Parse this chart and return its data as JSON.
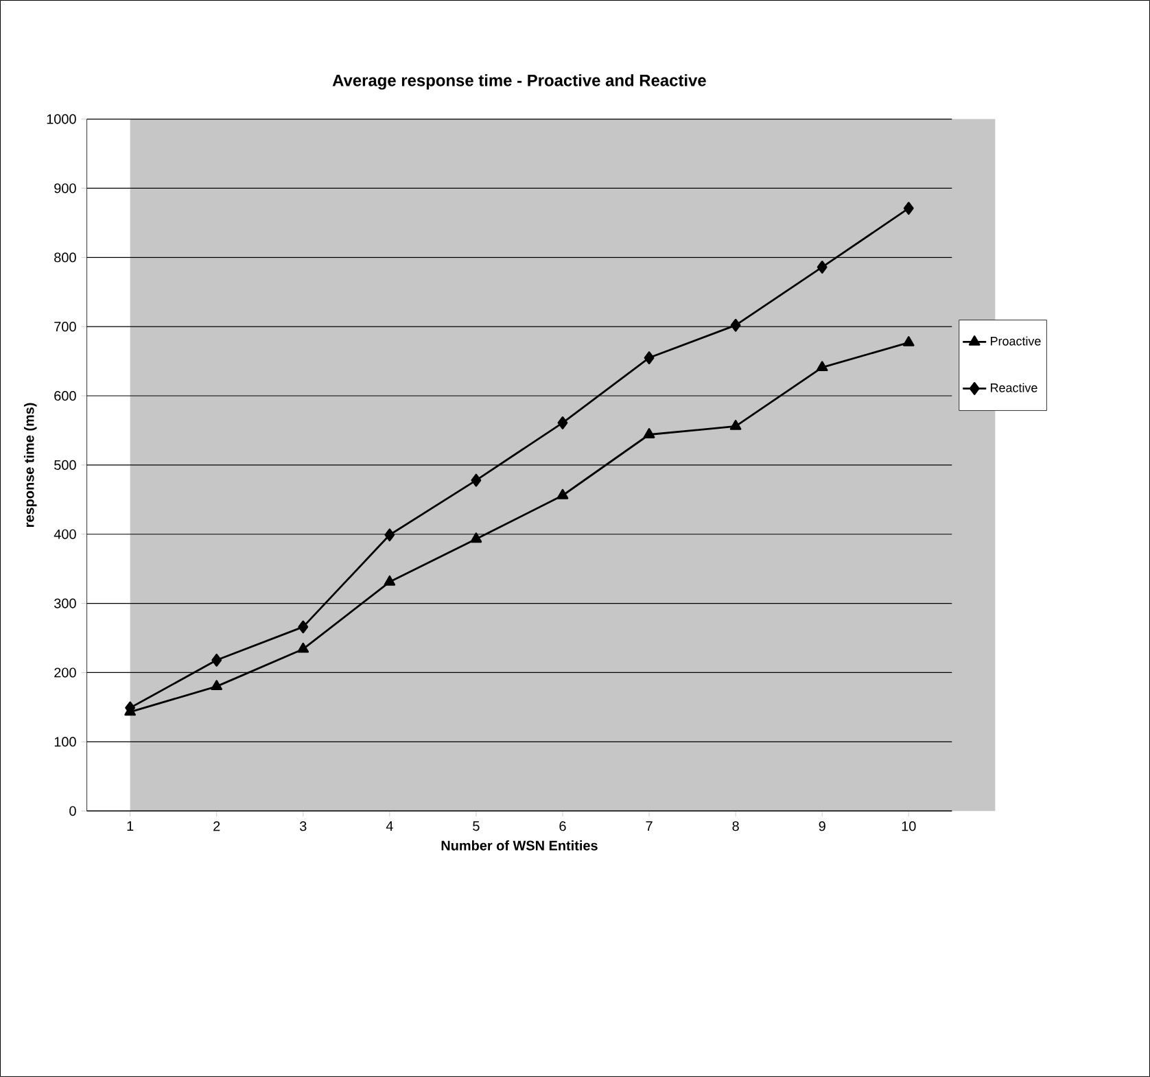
{
  "chart_data": {
    "type": "line",
    "title": "Average response time - Proactive and Reactive",
    "xlabel": "Number of WSN Entities",
    "ylabel": "response time (ms)",
    "categories": [
      "1",
      "2",
      "3",
      "4",
      "5",
      "6",
      "7",
      "8",
      "9",
      "10"
    ],
    "series": [
      {
        "name": "Proactive",
        "color": "#000000",
        "marker": "triangle",
        "values": [
          143,
          180,
          234,
          331,
          393,
          456,
          544,
          556,
          641,
          677
        ]
      },
      {
        "name": "Reactive",
        "color": "#000000",
        "marker": "diamond",
        "values": [
          149,
          218,
          266,
          399,
          478,
          561,
          655,
          702,
          786,
          871
        ]
      }
    ],
    "ylim": [
      0,
      1000
    ],
    "yticks": [
      0,
      100,
      200,
      300,
      400,
      500,
      600,
      700,
      800,
      900,
      1000
    ],
    "grid": "y",
    "legend": "right",
    "line_style": "solid"
  }
}
